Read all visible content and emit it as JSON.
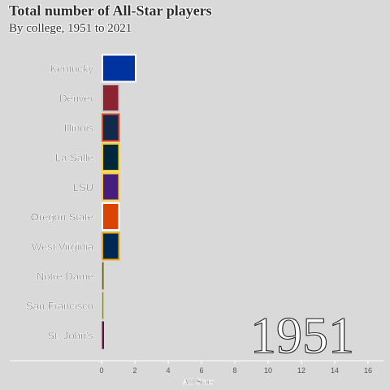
{
  "chart_data": {
    "type": "bar",
    "orientation": "horizontal",
    "title": "Total number of All-Star players",
    "subtitle": "By college, 1951 to 2021",
    "year_label": "1951",
    "xlabel": "All Stars",
    "xlim": [
      -5.6,
      17
    ],
    "xticks": [
      0,
      2,
      4,
      6,
      8,
      10,
      12,
      14,
      16
    ],
    "categories": [
      "Kentucky",
      "Denver",
      "Illinois",
      "La Salle",
      "LSU",
      "Oregon State",
      "West Virginia",
      "Notre Dame",
      "San Francisco",
      "St. John's"
    ],
    "values": [
      2,
      1,
      1,
      1,
      1,
      1,
      1,
      0.05,
      0.05,
      0.05
    ],
    "fill_colors": [
      "#0033a0",
      "#8b2331",
      "#13294b",
      "#00263e",
      "#461d7c",
      "#dc4405",
      "#002855",
      "#0c2340",
      "#00543c",
      "#ba0c2f"
    ],
    "outline_colors": [
      "#ffffff",
      "#c8c8c8",
      "#e84a27",
      "#ffd200",
      "#fdd023",
      "#ffffff",
      "#eaaa00",
      "#c99700",
      "#fdbb30",
      "#1f2a44"
    ],
    "grid": false,
    "legend": "none"
  }
}
